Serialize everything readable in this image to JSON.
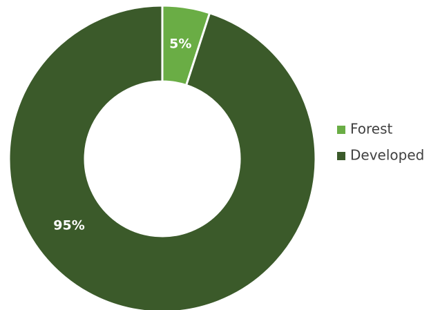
{
  "chart_data": {
    "type": "pie",
    "variant": "donut",
    "title": "",
    "categories": [
      "Forest",
      "Developed"
    ],
    "values": [
      5,
      95
    ],
    "data_labels": [
      "5%",
      "95%"
    ],
    "colors": [
      "#6aad45",
      "#3b5a2a"
    ],
    "legend": {
      "position": "right",
      "items": [
        {
          "label": "Forest",
          "color": "#6aad45"
        },
        {
          "label": "Developed",
          "color": "#3b5a2a"
        }
      ]
    }
  }
}
